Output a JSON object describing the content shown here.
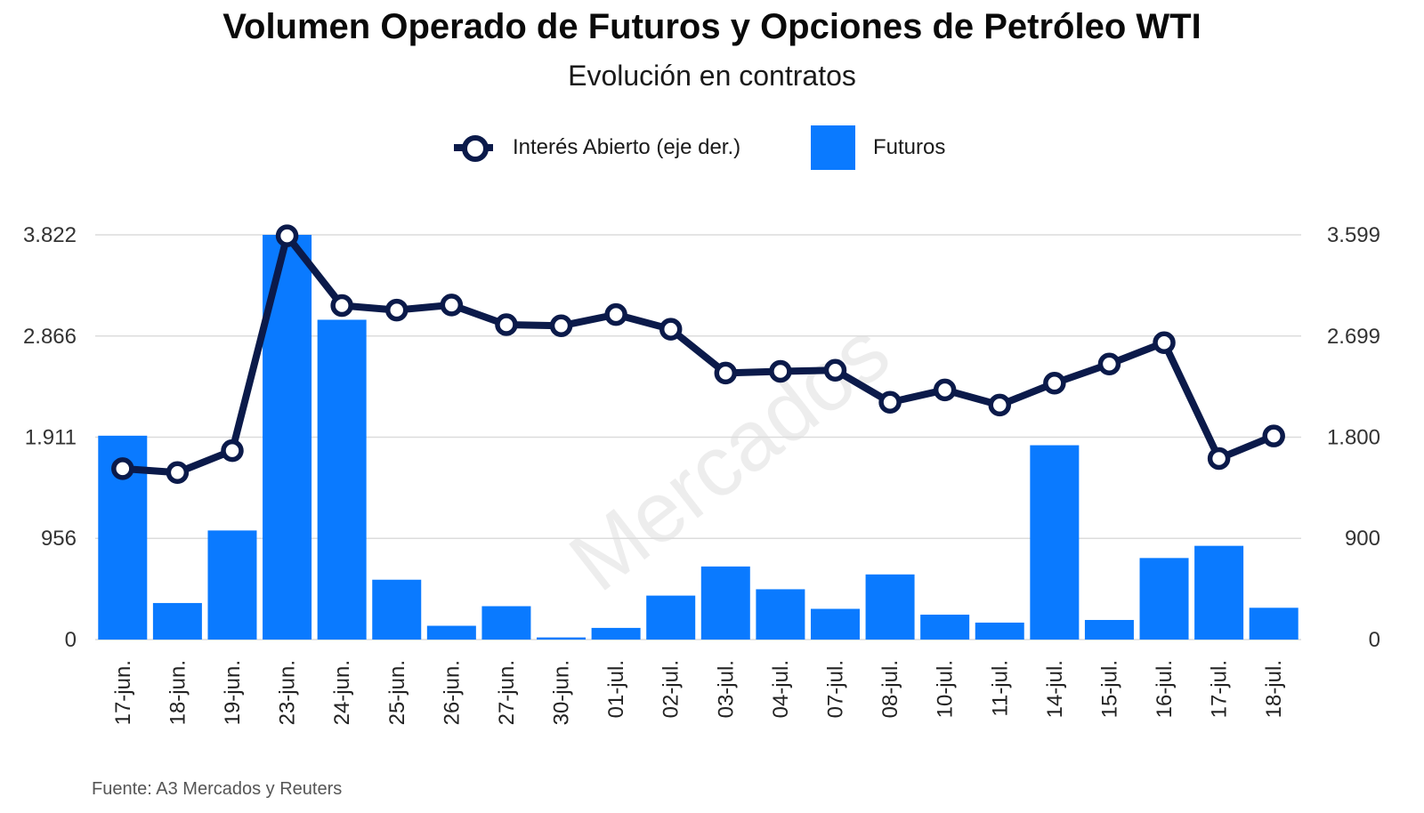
{
  "title": "Volumen Operado de Futuros y Opciones de Petróleo WTI",
  "subtitle": "Evolución en contratos",
  "source": "Fuente: A3 Mercados y Reuters",
  "watermark": "Mercados",
  "colors": {
    "bars": "#0a7aff",
    "line": "#0b1a4a",
    "grid": "#dcdcdc"
  },
  "chart_data": {
    "type": "bar",
    "categories": [
      "17-jun.",
      "18-jun.",
      "19-jun.",
      "23-jun.",
      "24-jun.",
      "25-jun.",
      "26-jun.",
      "27-jun.",
      "30-jun.",
      "01-jul.",
      "02-jul.",
      "03-jul.",
      "04-jul.",
      "07-jul.",
      "08-jul.",
      "10-jul.",
      "11-jul.",
      "14-jul.",
      "15-jul.",
      "16-jul.",
      "17-jul.",
      "18-jul."
    ],
    "series": [
      {
        "name": "Futuros",
        "type": "bar",
        "axis": "left",
        "values": [
          1925,
          345,
          1030,
          3822,
          3020,
          565,
          130,
          315,
          20,
          110,
          415,
          690,
          475,
          290,
          615,
          235,
          160,
          1835,
          185,
          770,
          885,
          300
        ]
      },
      {
        "name": "Interés Abierto (eje der.)",
        "type": "line",
        "axis": "right",
        "values": [
          1520,
          1485,
          1680,
          3590,
          2970,
          2930,
          2975,
          2800,
          2790,
          2890,
          2760,
          2370,
          2385,
          2395,
          2110,
          2220,
          2085,
          2280,
          2450,
          2640,
          1610,
          1810
        ]
      }
    ],
    "y_left": {
      "ticks": [
        "0",
        "956",
        "1.911",
        "2.866",
        "3.822"
      ],
      "tick_values": [
        0,
        956,
        1911,
        2866,
        3822
      ],
      "ylim": [
        0,
        3822
      ]
    },
    "y_right": {
      "ticks": [
        "0",
        "900",
        "1.800",
        "2.699",
        "3.599"
      ],
      "tick_values": [
        0,
        900,
        1800,
        2699,
        3599
      ],
      "ylim": [
        0,
        3599
      ]
    },
    "legend": [
      "Interés Abierto (eje der.)",
      "Futuros"
    ],
    "legend_position": "top",
    "grid": true
  }
}
